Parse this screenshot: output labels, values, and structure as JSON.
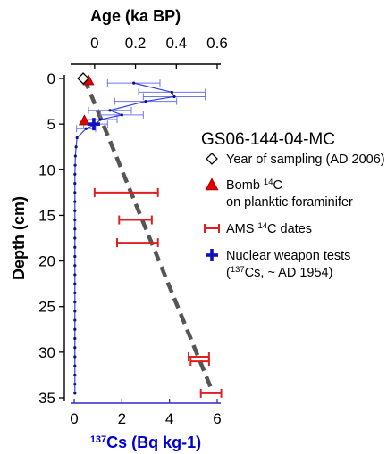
{
  "chart_data": {
    "type": "scatter",
    "title": "GS06-144-04-MC",
    "ylabel": "Depth (cm)",
    "ylim": [
      0,
      35
    ],
    "y_ticks": [
      0,
      5,
      10,
      15,
      20,
      25,
      30,
      35
    ],
    "top_axis": {
      "label": "Age (ka BP)",
      "range": [
        -0.1,
        0.6
      ],
      "ticks": [
        0,
        0.2,
        0.4,
        0.6
      ],
      "tick_labels": [
        "0",
        "0.2",
        "0.4",
        "0.6"
      ]
    },
    "bottom_axis": {
      "label_sup": "137",
      "label_main": "Cs (Bq kg-1)",
      "range": [
        0,
        6
      ],
      "ticks": [
        0,
        2,
        4,
        6
      ],
      "tick_labels": [
        "0",
        "2",
        "4",
        "6"
      ],
      "color": "#0000d0"
    },
    "series": [
      {
        "name": "137Cs activity",
        "axis": "bottom",
        "color": "#3040e0",
        "points": [
          {
            "depth": 0.5,
            "value": 2.5,
            "err": 1.1
          },
          {
            "depth": 1.5,
            "value": 4.1,
            "err": 1.4
          },
          {
            "depth": 2.0,
            "value": 4.2,
            "err": 1.3
          },
          {
            "depth": 2.5,
            "value": 3.0,
            "err": 1.3
          },
          {
            "depth": 3.5,
            "value": 1.5,
            "err": 0.9
          },
          {
            "depth": 4.0,
            "value": 2.0,
            "err": 0.9
          },
          {
            "depth": 4.5,
            "value": 1.1,
            "err": 0.7
          },
          {
            "depth": 5.0,
            "value": 0.9,
            "err": 0.5
          },
          {
            "depth": 5.5,
            "value": 0.5,
            "err": 0.4
          },
          {
            "depth": 6.5,
            "value": 0.12,
            "err": 0
          },
          {
            "depth": 7.5,
            "value": 0.08,
            "err": 0
          },
          {
            "depth": 8.5,
            "value": 0.05,
            "err": 0
          },
          {
            "depth": 9.5,
            "value": 0.04,
            "err": 0
          },
          {
            "depth": 10.5,
            "value": 0.03,
            "err": 0
          },
          {
            "depth": 11.5,
            "value": 0.03,
            "err": 0
          },
          {
            "depth": 12.5,
            "value": 0.03,
            "err": 0
          },
          {
            "depth": 13.5,
            "value": 0.03,
            "err": 0
          },
          {
            "depth": 14.5,
            "value": 0.03,
            "err": 0
          },
          {
            "depth": 15.5,
            "value": 0.03,
            "err": 0
          },
          {
            "depth": 16.5,
            "value": 0.03,
            "err": 0
          },
          {
            "depth": 17.5,
            "value": 0.03,
            "err": 0
          },
          {
            "depth": 18.5,
            "value": 0.03,
            "err": 0
          },
          {
            "depth": 19.5,
            "value": 0.03,
            "err": 0
          },
          {
            "depth": 20.5,
            "value": 0.03,
            "err": 0
          },
          {
            "depth": 21.5,
            "value": 0.03,
            "err": 0
          },
          {
            "depth": 22.5,
            "value": 0.03,
            "err": 0
          },
          {
            "depth": 23.5,
            "value": 0.03,
            "err": 0
          },
          {
            "depth": 24.5,
            "value": 0.03,
            "err": 0
          },
          {
            "depth": 25.5,
            "value": 0.03,
            "err": 0
          },
          {
            "depth": 26.5,
            "value": 0.03,
            "err": 0
          },
          {
            "depth": 27.5,
            "value": 0.03,
            "err": 0
          },
          {
            "depth": 28.5,
            "value": 0.03,
            "err": 0
          },
          {
            "depth": 29.5,
            "value": 0.03,
            "err": 0
          },
          {
            "depth": 30.5,
            "value": 0.03,
            "err": 0
          },
          {
            "depth": 31.5,
            "value": 0.03,
            "err": 0
          },
          {
            "depth": 32.5,
            "value": 0.03,
            "err": 0
          },
          {
            "depth": 33.5,
            "value": 0.03,
            "err": 0
          },
          {
            "depth": 34.5,
            "value": 0.03,
            "err": 0
          }
        ]
      },
      {
        "name": "AMS 14C dates",
        "axis": "top",
        "color": "#e02020",
        "points": [
          {
            "depth": 12.5,
            "min": 0.0,
            "max": 0.31
          },
          {
            "depth": 15.5,
            "min": 0.12,
            "max": 0.28
          },
          {
            "depth": 18.0,
            "min": 0.11,
            "max": 0.31
          },
          {
            "depth": 30.5,
            "min": 0.46,
            "max": 0.56
          },
          {
            "depth": 31.0,
            "min": 0.47,
            "max": 0.56
          },
          {
            "depth": 34.5,
            "min": 0.52,
            "max": 0.62
          }
        ]
      },
      {
        "name": "Bomb 14C on planktic foraminifer",
        "axis": "top",
        "color": "#e00000",
        "points": [
          {
            "depth": 0.2,
            "age": -0.03
          },
          {
            "depth": 4.6,
            "age": -0.05
          }
        ]
      },
      {
        "name": "Year of sampling (AD 2006)",
        "axis": "top",
        "points": [
          {
            "depth": 0,
            "age": -0.056
          }
        ]
      },
      {
        "name": "Nuclear weapon tests",
        "axis": "top",
        "color": "#1010c0",
        "points": [
          {
            "depth": 5.0,
            "age": -0.004
          }
        ]
      }
    ],
    "age_model_line": {
      "style": "dashed",
      "color": "#555555",
      "points": [
        [
          -0.05,
          0
        ],
        [
          0.58,
          34.5
        ]
      ]
    },
    "legend": {
      "placement": "right",
      "items": [
        {
          "symbol": "diamond-open",
          "lines": [
            {
              "parts": [
                {
                  "text": "Year of sampling (AD 2006)"
                }
              ]
            }
          ]
        },
        {
          "symbol": "triangle-red",
          "lines": [
            {
              "parts": [
                {
                  "text": "Bomb "
                },
                {
                  "text": "14",
                  "sup": true
                },
                {
                  "text": "C"
                }
              ]
            },
            {
              "parts": [
                {
                  "text": "on planktic foraminifer"
                }
              ]
            }
          ]
        },
        {
          "symbol": "errorbar-red",
          "lines": [
            {
              "parts": [
                {
                  "text": "AMS "
                },
                {
                  "text": "14",
                  "sup": true
                },
                {
                  "text": "C dates"
                }
              ]
            }
          ]
        },
        {
          "symbol": "plus-blue",
          "lines": [
            {
              "parts": [
                {
                  "text": "Nuclear weapon tests"
                }
              ]
            },
            {
              "parts": [
                {
                  "text": "("
                },
                {
                  "text": "137",
                  "sup": true
                },
                {
                  "text": "Cs, ~ AD 1954)"
                }
              ]
            }
          ]
        }
      ]
    }
  }
}
